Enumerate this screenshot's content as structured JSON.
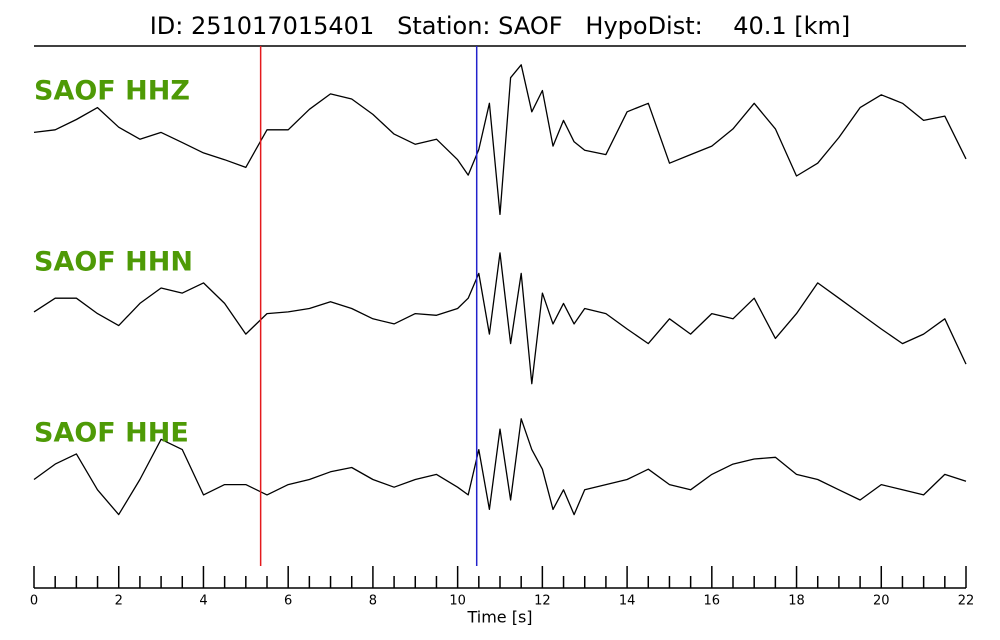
{
  "chart_data": {
    "type": "line",
    "title": "ID: 251017015401   Station: SAOF   HypoDist:    40.1 [km]",
    "xlabel": "Time [s]",
    "x": [
      0,
      0.5,
      1,
      1.5,
      2,
      2.5,
      3,
      3.5,
      4,
      4.5,
      5,
      5.5,
      6,
      6.5,
      7,
      7.5,
      8,
      8.5,
      9,
      9.5,
      10,
      10.25,
      10.5,
      10.75,
      11,
      11.25,
      11.5,
      11.75,
      12,
      12.25,
      12.5,
      12.75,
      13,
      13.5,
      14,
      14.5,
      15,
      15.5,
      16,
      16.5,
      17,
      17.5,
      18,
      18.5,
      19,
      19.5,
      20,
      20.5,
      21,
      21.5,
      22
    ],
    "series": [
      {
        "name": "SAOF HHZ",
        "color": "#000000",
        "label_color": "#4e9a06",
        "values": [
          6,
          9,
          21,
          35,
          12,
          -2,
          6,
          -6,
          -18,
          -26,
          -35,
          9,
          9,
          33,
          51,
          45,
          27,
          4,
          -8,
          -2,
          -26,
          -44,
          -14,
          40,
          -90,
          70,
          85,
          30,
          55,
          -10,
          20,
          -5,
          -15,
          -20,
          30,
          40,
          -30,
          -20,
          -10,
          10,
          40,
          10,
          -45,
          -30,
          0,
          35,
          50,
          40,
          20,
          25,
          -25
        ]
      },
      {
        "name": "SAOF HHN",
        "color": "#000000",
        "label_color": "#4e9a06",
        "values": [
          -4,
          12,
          12,
          -6,
          -20,
          6,
          24,
          18,
          30,
          6,
          -30,
          -6,
          -4,
          0,
          8,
          0,
          -12,
          -18,
          -6,
          -8,
          0,
          12,
          41,
          -30,
          65,
          -41,
          41,
          -88,
          18,
          -18,
          6,
          -18,
          0,
          -6,
          -24,
          -41,
          -12,
          -30,
          -6,
          -12,
          12,
          -35,
          -6,
          30,
          12,
          -6,
          -24,
          -41,
          -30,
          -12,
          -65
        ]
      },
      {
        "name": "SAOF HHE",
        "color": "#000000",
        "label_color": "#4e9a06",
        "values": [
          0,
          18,
          30,
          -12,
          -41,
          0,
          47,
          35,
          -18,
          -6,
          -6,
          -18,
          -6,
          0,
          9,
          14,
          0,
          -9,
          0,
          6,
          -9,
          -18,
          35,
          -35,
          59,
          -24,
          71,
          35,
          12,
          -35,
          -12,
          -41,
          -12,
          -6,
          0,
          12,
          -6,
          -12,
          6,
          18,
          24,
          26,
          6,
          0,
          -12,
          -24,
          -6,
          -12,
          -18,
          6,
          -2
        ]
      }
    ],
    "ylim": [
      -100,
      100
    ],
    "xlim": [
      0,
      22
    ],
    "xticks": [
      0,
      2,
      4,
      6,
      8,
      10,
      12,
      14,
      16,
      18,
      20,
      22
    ],
    "xminor_ticks": [
      0.5,
      1,
      1.5,
      2.5,
      3,
      3.5,
      4.5,
      5,
      5.5,
      6.5,
      7,
      7.5,
      8.5,
      9,
      9.5,
      10.5,
      11,
      11.5,
      12.5,
      13,
      13.5,
      14.5,
      15,
      15.5,
      16.5,
      17,
      17.5,
      18.5,
      19,
      19.5,
      20.5,
      21,
      21.5
    ],
    "picks": [
      {
        "x": 5.35,
        "color": "#e41a1c"
      },
      {
        "x": 10.45,
        "color": "#2222cc"
      }
    ]
  }
}
